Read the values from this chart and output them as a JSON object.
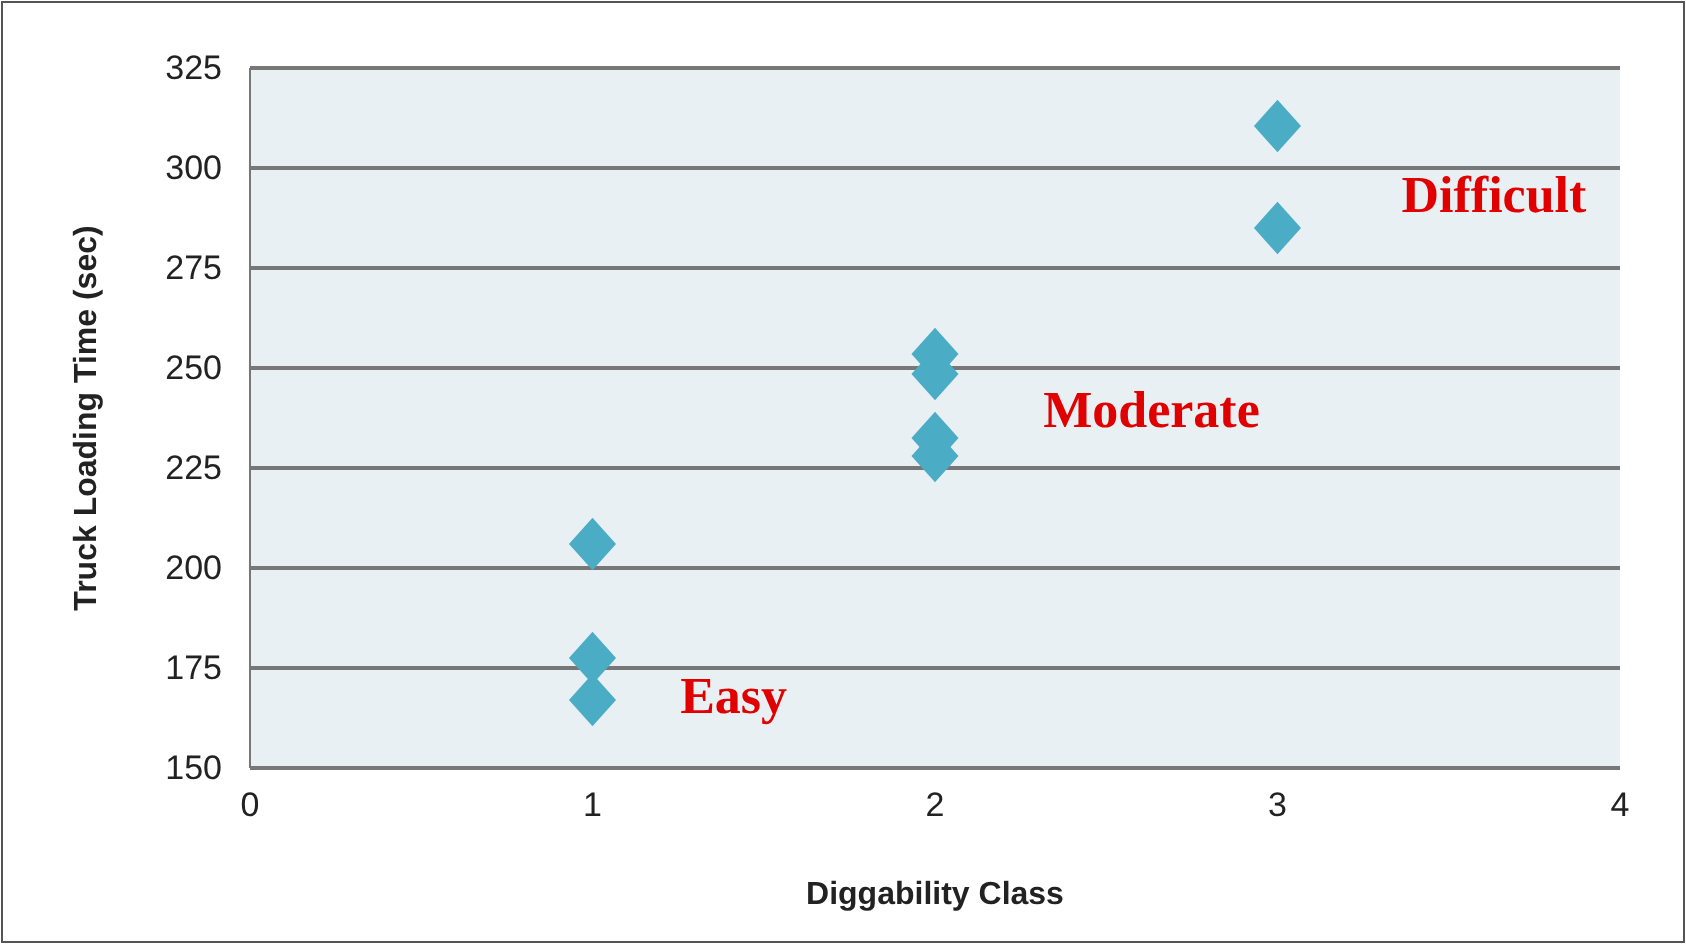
{
  "chart_data": {
    "type": "scatter",
    "xlabel": "Diggability Class",
    "ylabel": "Truck Loading Time (sec)",
    "x": [
      1,
      1,
      1,
      2,
      2,
      2,
      2,
      3,
      3
    ],
    "series": [
      {
        "color": "#4bacc6",
        "values": [
          206,
          177.5,
          167,
          253.5,
          248.5,
          232.5,
          228,
          310.5,
          285
        ]
      }
    ],
    "xlim": [
      0,
      4
    ],
    "xticks": [
      0,
      1,
      2,
      3,
      4
    ],
    "ylim": [
      150,
      325
    ],
    "yticks": [
      150,
      175,
      200,
      225,
      250,
      275,
      300,
      325
    ],
    "grid": "y",
    "marker": "diamond",
    "annotations": [
      "Easy",
      "Moderate",
      "Difficult"
    ]
  }
}
